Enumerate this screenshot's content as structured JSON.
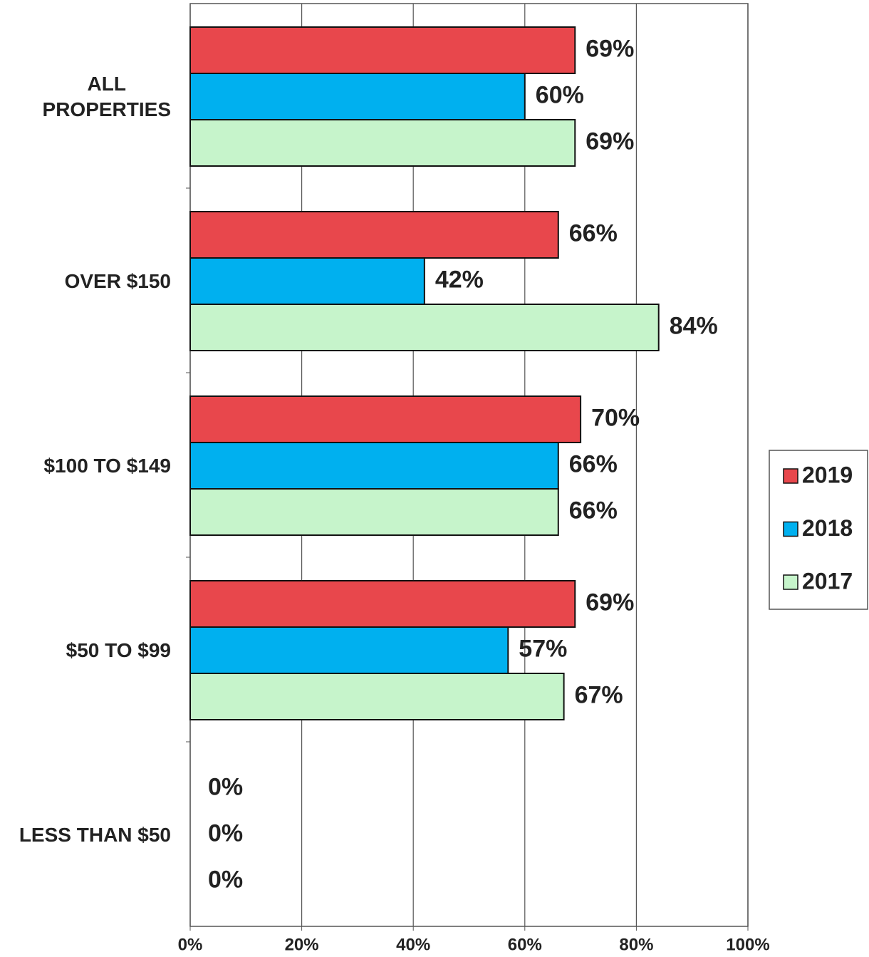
{
  "chart_data": {
    "type": "bar",
    "orientation": "horizontal",
    "categories": [
      "ALL\nPROPERTIES",
      "OVER $150",
      "$100 TO $149",
      "$50 TO $99",
      "LESS THAN $50"
    ],
    "series": [
      {
        "name": "2019",
        "color": "#e8474c",
        "values": [
          69,
          66,
          70,
          69,
          0
        ],
        "value_labels": [
          "69%",
          "66%",
          "70%",
          "69%",
          "0%"
        ]
      },
      {
        "name": "2018",
        "color": "#00b0ef",
        "values": [
          60,
          42,
          66,
          57,
          0
        ],
        "value_labels": [
          "60%",
          "42%",
          "66%",
          "57%",
          "0%"
        ]
      },
      {
        "name": "2017",
        "color": "#c6f4cb",
        "values": [
          69,
          84,
          66,
          67,
          0
        ],
        "value_labels": [
          "69%",
          "84%",
          "66%",
          "67%",
          "0%"
        ]
      }
    ],
    "xlim": [
      0,
      100
    ],
    "xticks": [
      {
        "value": 0,
        "label": "0%"
      },
      {
        "value": 20,
        "label": "20%"
      },
      {
        "value": 40,
        "label": "40%"
      },
      {
        "value": 60,
        "label": "60%"
      },
      {
        "value": 80,
        "label": "80%"
      },
      {
        "value": 100,
        "label": "100%"
      }
    ],
    "grid": true,
    "legend": "right"
  }
}
